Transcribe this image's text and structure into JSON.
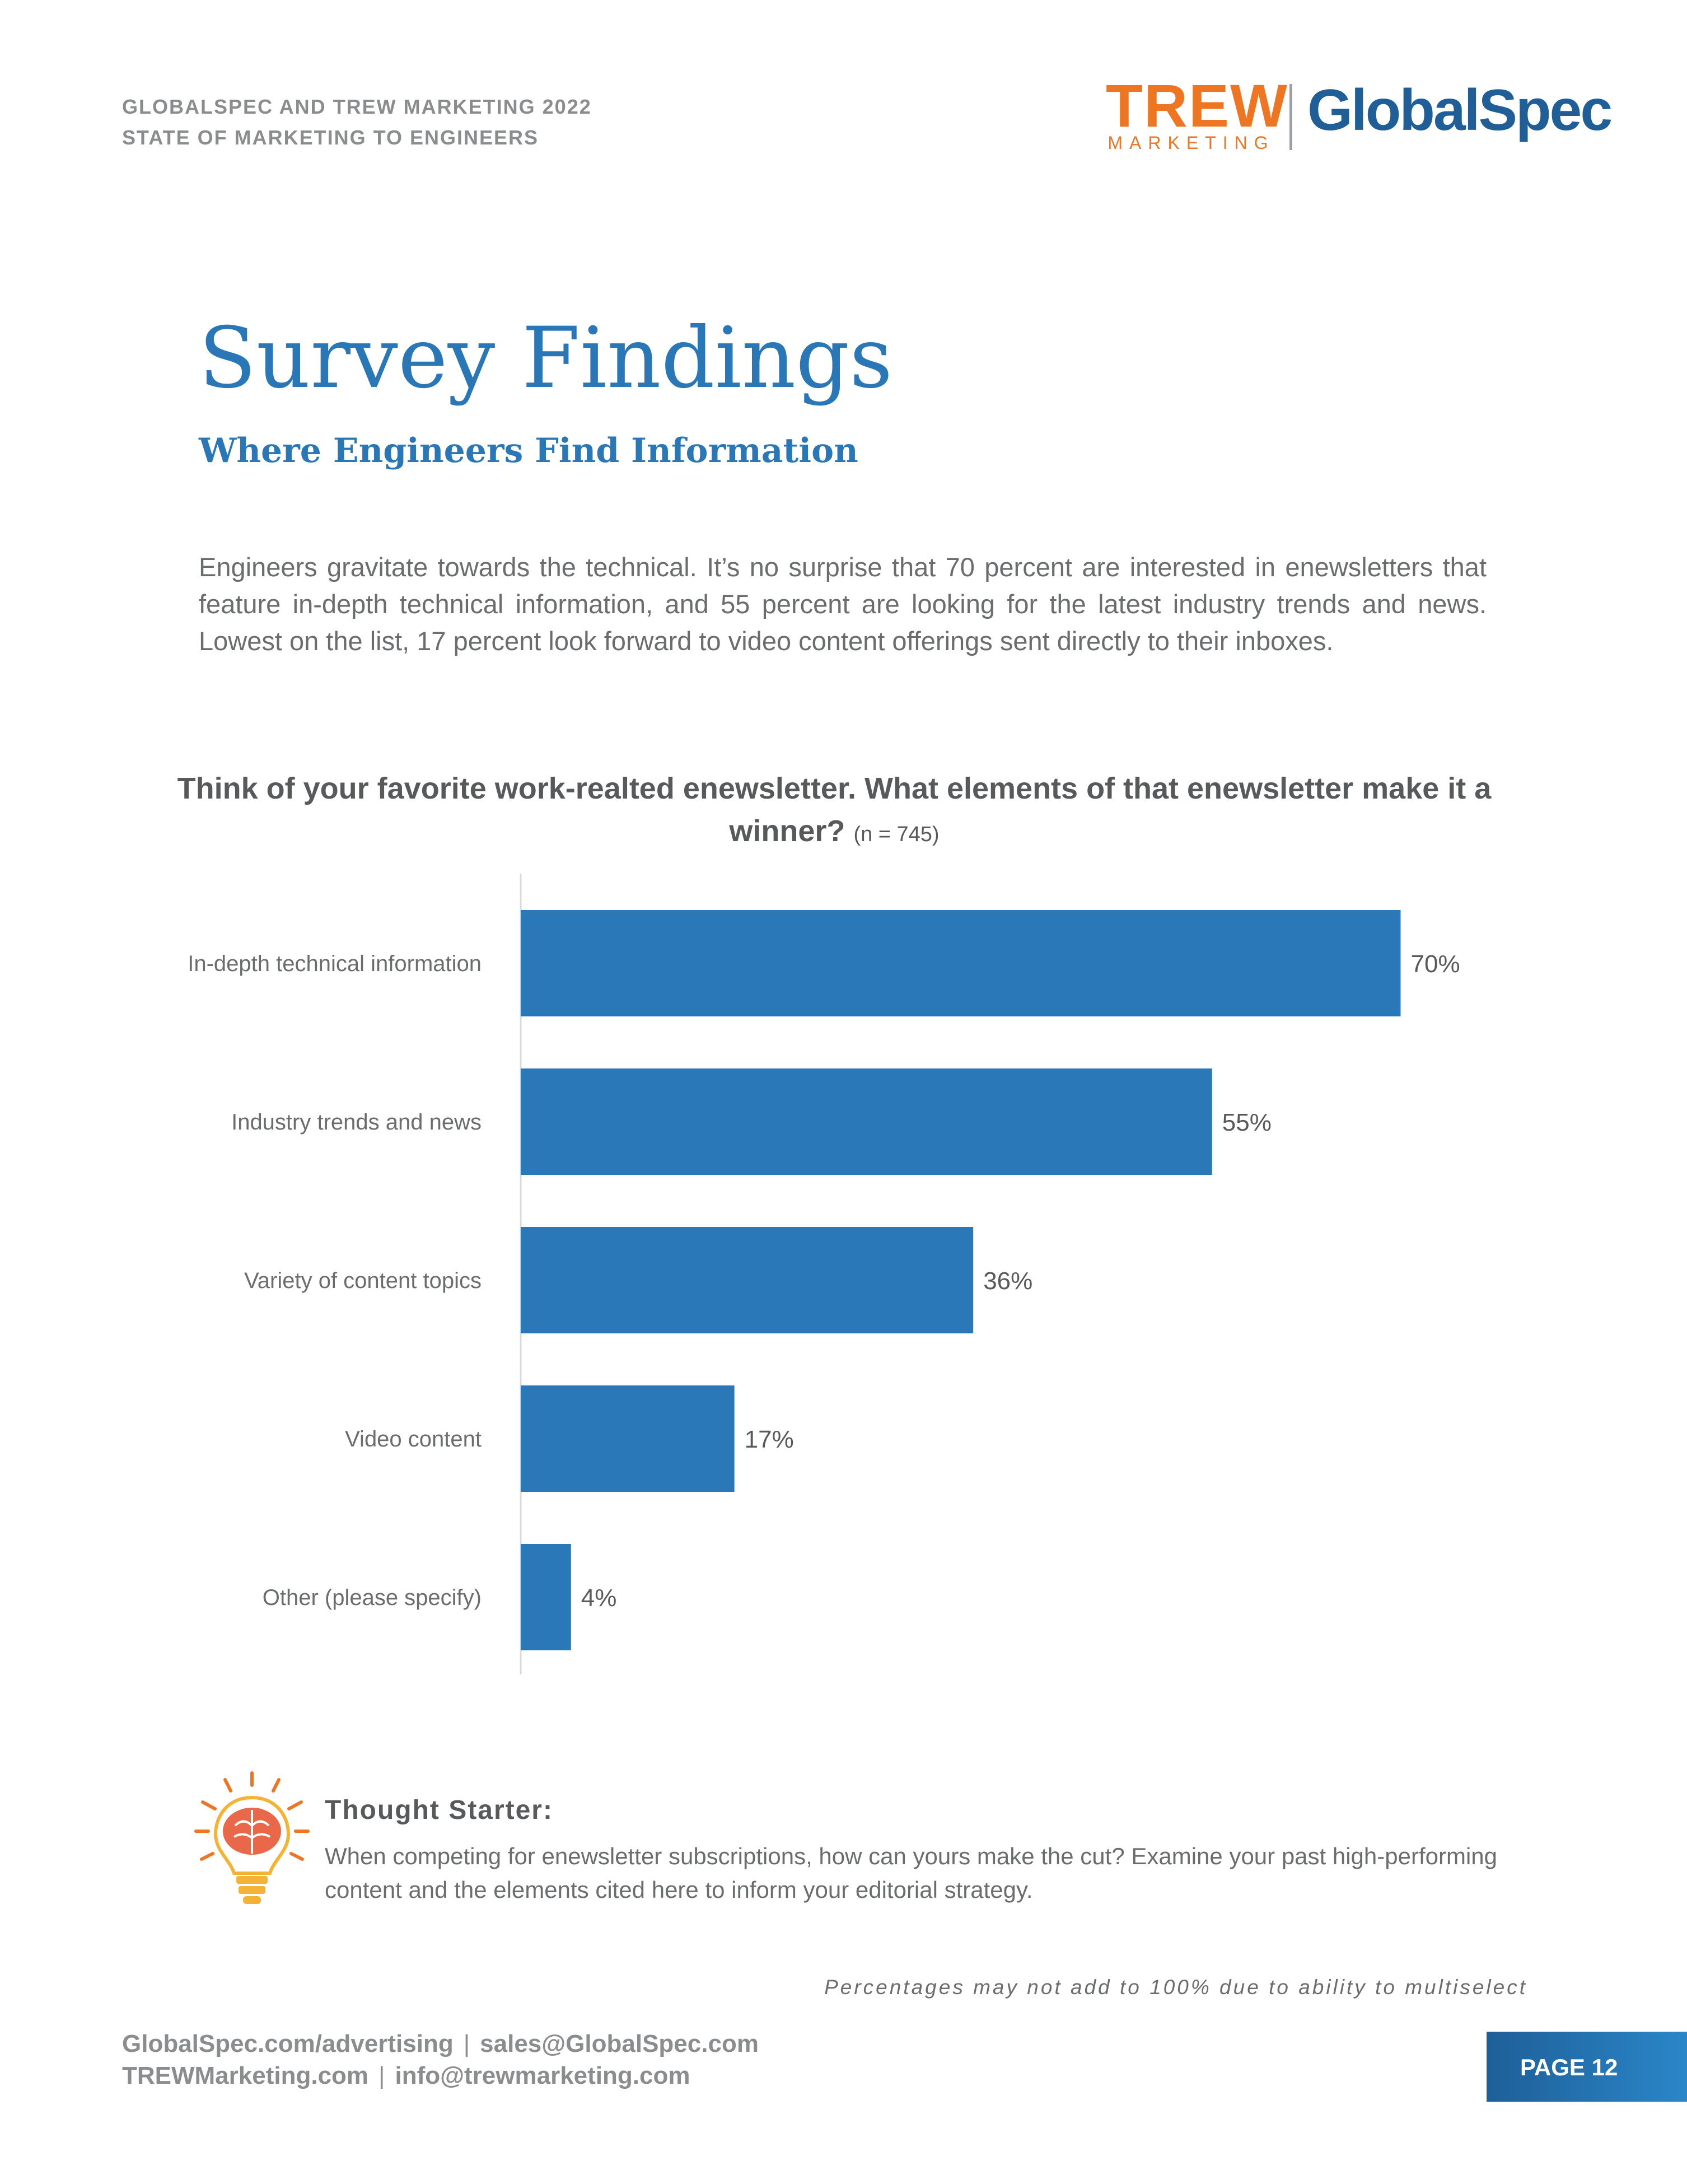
{
  "header": {
    "line1": "GLOBALSPEC AND TREW MARKETING 2022",
    "line2": "STATE OF MARKETING TO ENGINEERS"
  },
  "logos": {
    "trew": "TREW",
    "trew_sub": "MARKETING",
    "globalspec": "GlobalSpec"
  },
  "page": {
    "title": "Survey Findings",
    "subtitle": "Where Engineers Find Information",
    "intro": "Engineers gravitate towards the technical. It’s no surprise that 70 percent are interested in enewsletters that feature in-depth technical information, and 55 percent are looking for the latest industry trends and news. Lowest on the list, 17 percent look forward to video content offerings sent directly to their inboxes."
  },
  "chart_data": {
    "type": "bar",
    "orientation": "horizontal",
    "title": "Think of your favorite work-realted enewsletter. What elements of that enewsletter make it a winner?",
    "sample_note": "(n = 745)",
    "categories": [
      "In-depth technical information",
      "Industry trends and news",
      "Variety of content topics",
      "Video content",
      "Other (please specify)"
    ],
    "values": [
      70,
      55,
      36,
      17,
      4
    ],
    "value_labels": [
      "70%",
      "55%",
      "36%",
      "17%",
      "4%"
    ],
    "unit": "%",
    "xlim": [
      0,
      80
    ],
    "bar_color": "#2a78b8",
    "grid": false
  },
  "thought_starter": {
    "heading": "Thought Starter:",
    "body": "When competing for enewsletter subscriptions, how can yours make the cut? Examine your past high-performing content and the elements cited here to inform your editorial strategy."
  },
  "footnote": "Percentages may not add to 100% due to ability to multiselect",
  "footer": {
    "link1": "GlobalSpec.com/advertising",
    "email1": "sales@GlobalSpec.com",
    "link2": "TREWMarketing.com",
    "email2": "info@trewmarketing.com",
    "separator": "|"
  },
  "page_number": "PAGE 12",
  "colors": {
    "accent_blue": "#2a77b7",
    "trew_orange": "#ee7623",
    "globalspec_blue": "#1f5e96"
  }
}
